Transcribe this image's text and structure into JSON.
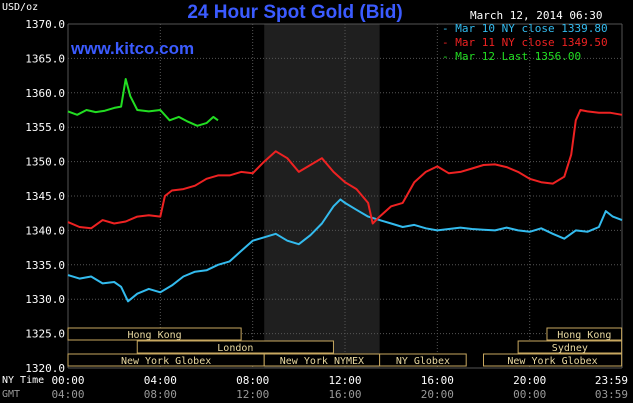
{
  "header": {
    "title": "24 Hour Spot Gold (Bid)",
    "units": "USD/oz",
    "timestamp": "March 12, 2014 06:30",
    "site": "www.kitco.com"
  },
  "legend": [
    {
      "label": "Mar 10 NY close 1339.80",
      "color": "#33bbee"
    },
    {
      "label": "Mar 11 NY close 1349.50",
      "color": "#ee2222"
    },
    {
      "label": "Mar 12 Last 1356.00",
      "color": "#22dd22"
    }
  ],
  "axis": {
    "ny_time_label": "NY Time",
    "gmt_label": "GMT",
    "ny_ticks": [
      "00:00",
      "04:00",
      "08:00",
      "12:00",
      "16:00",
      "20:00",
      "23:59"
    ],
    "gmt_ticks": [
      "04:00",
      "08:00",
      "12:00",
      "16:00",
      "20:00",
      "00:00",
      "03:59"
    ]
  },
  "sessions": [
    {
      "label": "Hong Kong",
      "row": 0,
      "start": "00:00",
      "end": "07:30"
    },
    {
      "label": "Hong Kong",
      "row": 0,
      "start": "20:45",
      "end": "23:59"
    },
    {
      "label": "London",
      "row": 1,
      "start": "03:00",
      "end": "11:30"
    },
    {
      "label": "Sydney",
      "row": 1,
      "start": "19:30",
      "end": "23:59"
    },
    {
      "label": "New York Globex",
      "row": 2,
      "start": "00:00",
      "end": "08:30"
    },
    {
      "label": "New York NYMEX",
      "row": 2,
      "start": "08:30",
      "end": "13:30"
    },
    {
      "label": "NY Globex",
      "row": 2,
      "start": "13:30",
      "end": "17:15"
    },
    {
      "label": "New York Globex",
      "row": 2,
      "start": "18:00",
      "end": "23:59"
    }
  ],
  "chart_data": {
    "type": "line",
    "title": "24 Hour Spot Gold (Bid)",
    "ylabel": "USD/oz",
    "xlabel": "NY Time",
    "x_unit": "hours",
    "ylim": [
      1320,
      1370
    ],
    "xlim": [
      0,
      24
    ],
    "y_ticks": [
      1320,
      1325,
      1330,
      1335,
      1340,
      1345,
      1350,
      1355,
      1360,
      1365,
      1370
    ],
    "x_ticks": [
      0,
      4,
      8,
      12,
      16,
      20,
      24
    ],
    "grid": true,
    "legend_position": "top-right",
    "shaded_region": [
      8.5,
      13.5
    ],
    "series": [
      {
        "name": "Mar 10 NY close 1339.80",
        "color": "#33bbee",
        "points": [
          [
            0,
            1333.5
          ],
          [
            0.5,
            1333
          ],
          [
            1,
            1333.3
          ],
          [
            1.5,
            1332.3
          ],
          [
            2,
            1332.5
          ],
          [
            2.3,
            1331.8
          ],
          [
            2.6,
            1329.7
          ],
          [
            3,
            1330.8
          ],
          [
            3.5,
            1331.5
          ],
          [
            4,
            1331
          ],
          [
            4.5,
            1332
          ],
          [
            5,
            1333.3
          ],
          [
            5.5,
            1334
          ],
          [
            6,
            1334.2
          ],
          [
            6.5,
            1335
          ],
          [
            7,
            1335.5
          ],
          [
            7.5,
            1337
          ],
          [
            8,
            1338.5
          ],
          [
            8.5,
            1339
          ],
          [
            9,
            1339.5
          ],
          [
            9.5,
            1338.5
          ],
          [
            10,
            1338
          ],
          [
            10.5,
            1339.3
          ],
          [
            11,
            1341
          ],
          [
            11.5,
            1343.5
          ],
          [
            11.8,
            1344.5
          ],
          [
            12,
            1344
          ],
          [
            12.5,
            1343
          ],
          [
            13,
            1342
          ],
          [
            13.5,
            1341.5
          ],
          [
            14,
            1341
          ],
          [
            14.5,
            1340.5
          ],
          [
            15,
            1340.8
          ],
          [
            15.5,
            1340.3
          ],
          [
            16,
            1340
          ],
          [
            16.5,
            1340.2
          ],
          [
            17,
            1340.4
          ],
          [
            17.5,
            1340.2
          ],
          [
            18,
            1340.1
          ],
          [
            18.5,
            1340
          ],
          [
            19,
            1340.4
          ],
          [
            19.5,
            1340
          ],
          [
            20,
            1339.8
          ],
          [
            20.5,
            1340.3
          ],
          [
            21,
            1339.5
          ],
          [
            21.5,
            1338.8
          ],
          [
            22,
            1340
          ],
          [
            22.5,
            1339.8
          ],
          [
            23,
            1340.5
          ],
          [
            23.3,
            1342.8
          ],
          [
            23.6,
            1342
          ],
          [
            24,
            1341.5
          ]
        ]
      },
      {
        "name": "Mar 11 NY close 1349.50",
        "color": "#ee2222",
        "points": [
          [
            0,
            1341.2
          ],
          [
            0.5,
            1340.5
          ],
          [
            1,
            1340.3
          ],
          [
            1.5,
            1341.5
          ],
          [
            2,
            1341
          ],
          [
            2.5,
            1341.3
          ],
          [
            3,
            1342
          ],
          [
            3.5,
            1342.2
          ],
          [
            4,
            1342
          ],
          [
            4.2,
            1345
          ],
          [
            4.5,
            1345.8
          ],
          [
            5,
            1346
          ],
          [
            5.5,
            1346.5
          ],
          [
            6,
            1347.5
          ],
          [
            6.5,
            1348
          ],
          [
            7,
            1348
          ],
          [
            7.5,
            1348.5
          ],
          [
            8,
            1348.3
          ],
          [
            8.5,
            1350
          ],
          [
            9,
            1351.5
          ],
          [
            9.5,
            1350.5
          ],
          [
            10,
            1348.5
          ],
          [
            10.5,
            1349.5
          ],
          [
            11,
            1350.5
          ],
          [
            11.5,
            1348.5
          ],
          [
            12,
            1347
          ],
          [
            12.5,
            1346
          ],
          [
            13,
            1344
          ],
          [
            13.2,
            1341
          ],
          [
            13.5,
            1342
          ],
          [
            14,
            1343.5
          ],
          [
            14.5,
            1344
          ],
          [
            15,
            1347
          ],
          [
            15.5,
            1348.5
          ],
          [
            16,
            1349.3
          ],
          [
            16.5,
            1348.3
          ],
          [
            17,
            1348.5
          ],
          [
            17.5,
            1349
          ],
          [
            18,
            1349.5
          ],
          [
            18.5,
            1349.6
          ],
          [
            19,
            1349.2
          ],
          [
            19.5,
            1348.5
          ],
          [
            20,
            1347.5
          ],
          [
            20.5,
            1347
          ],
          [
            21,
            1346.8
          ],
          [
            21.5,
            1347.8
          ],
          [
            21.8,
            1351
          ],
          [
            22,
            1356
          ],
          [
            22.2,
            1357.5
          ],
          [
            22.5,
            1357.3
          ],
          [
            23,
            1357.1
          ],
          [
            23.5,
            1357.1
          ],
          [
            24,
            1356.8
          ]
        ]
      },
      {
        "name": "Mar 12 Last 1356.00",
        "color": "#22dd22",
        "points": [
          [
            0,
            1357.3
          ],
          [
            0.4,
            1356.8
          ],
          [
            0.8,
            1357.5
          ],
          [
            1.2,
            1357.2
          ],
          [
            1.6,
            1357.4
          ],
          [
            2,
            1357.8
          ],
          [
            2.3,
            1358
          ],
          [
            2.5,
            1362
          ],
          [
            2.7,
            1359.5
          ],
          [
            3,
            1357.5
          ],
          [
            3.5,
            1357.3
          ],
          [
            4,
            1357.5
          ],
          [
            4.4,
            1356
          ],
          [
            4.8,
            1356.5
          ],
          [
            5.2,
            1355.8
          ],
          [
            5.6,
            1355.2
          ],
          [
            6,
            1355.6
          ],
          [
            6.3,
            1356.5
          ],
          [
            6.5,
            1356
          ]
        ]
      }
    ]
  }
}
